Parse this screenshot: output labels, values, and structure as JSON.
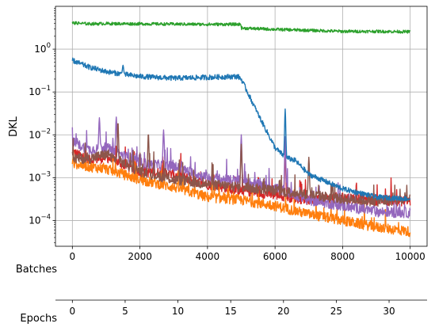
{
  "chart_data": {
    "type": "line",
    "ylabel": "DKL",
    "yscale": "log",
    "ylim": [
      2.5e-05,
      10
    ],
    "grid": true,
    "x_axes": [
      {
        "label": "Batches",
        "range": [
          -500,
          10500
        ],
        "ticks": [
          0,
          2000,
          4000,
          6000,
          8000,
          10000
        ]
      },
      {
        "label": "Epochs",
        "range": [
          -1.6,
          33.6
        ],
        "ticks": [
          0,
          5,
          10,
          15,
          20,
          25,
          30
        ]
      }
    ],
    "y_tick_exponents": [
      -4,
      -3,
      -2,
      -1,
      0
    ],
    "series": [
      {
        "color": "#2ca02c",
        "noise": 0.035,
        "x": [
          0,
          500,
          1000,
          2000,
          3000,
          4000,
          4990,
          5010,
          6000,
          7000,
          8000,
          9000,
          10000
        ],
        "y": [
          4.1,
          3.9,
          3.95,
          3.9,
          3.85,
          3.8,
          3.8,
          3.1,
          2.9,
          2.75,
          2.6,
          2.6,
          2.55
        ]
      },
      {
        "color": "#1f77b4",
        "noise": 0.06,
        "x": [
          0,
          200,
          500,
          1000,
          1500,
          2000,
          3000,
          4000,
          4900,
          5000,
          5500,
          6000,
          6300,
          6600,
          7000,
          8000,
          9000,
          10000
        ],
        "y": [
          0.55,
          0.47,
          0.38,
          0.3,
          0.26,
          0.23,
          0.21,
          0.22,
          0.23,
          0.2,
          0.03,
          0.005,
          0.003,
          0.0025,
          0.0012,
          0.00055,
          0.00035,
          0.00032
        ]
      },
      {
        "color": "#d62728",
        "noise": 0.12,
        "x": [
          0,
          500,
          1000,
          2000,
          3000,
          4000,
          5000,
          6000,
          7000,
          8000,
          9000,
          10000
        ],
        "y": [
          0.004,
          0.0025,
          0.003,
          0.0014,
          0.0012,
          0.0007,
          0.0005,
          0.0004,
          0.0003,
          0.00035,
          0.0003,
          0.00028
        ]
      },
      {
        "color": "#ff7f0e",
        "noise": 0.12,
        "x": [
          0,
          500,
          1000,
          2000,
          3000,
          4000,
          5000,
          6000,
          7000,
          8000,
          9000,
          10000
        ],
        "y": [
          0.0022,
          0.0018,
          0.0016,
          0.0009,
          0.0006,
          0.00035,
          0.0003,
          0.00022,
          0.00014,
          0.0001,
          7e-05,
          5.5e-05
        ]
      },
      {
        "color": "#9467bd",
        "noise": 0.12,
        "x": [
          0,
          500,
          1000,
          2000,
          3000,
          4000,
          5000,
          6000,
          7000,
          8000,
          9000,
          10000
        ],
        "y": [
          0.0068,
          0.0045,
          0.005,
          0.0022,
          0.0018,
          0.001,
          0.0008,
          0.0006,
          0.0003,
          0.00022,
          0.00016,
          0.00015
        ]
      },
      {
        "color": "#8c564b",
        "noise": 0.12,
        "x": [
          0,
          500,
          1000,
          2000,
          3000,
          4000,
          5000,
          6000,
          7000,
          8000,
          9000,
          10000
        ],
        "y": [
          0.0028,
          0.0028,
          0.0035,
          0.0014,
          0.0009,
          0.0007,
          0.0006,
          0.0005,
          0.0004,
          0.00032,
          0.00028,
          0.0003
        ]
      }
    ],
    "spikes": [
      {
        "series": 1,
        "x": 1500,
        "y": 0.42
      },
      {
        "series": 1,
        "x": 6300,
        "y": 0.04
      },
      {
        "series": 1,
        "x": 5450,
        "y": 0.035
      },
      {
        "series": 4,
        "x": 800,
        "y": 0.025
      },
      {
        "series": 4,
        "x": 1300,
        "y": 0.026
      },
      {
        "series": 4,
        "x": 2700,
        "y": 0.013
      },
      {
        "series": 4,
        "x": 5000,
        "y": 0.01
      },
      {
        "series": 4,
        "x": 6300,
        "y": 0.009
      },
      {
        "series": 5,
        "x": 1350,
        "y": 0.02
      },
      {
        "series": 5,
        "x": 2250,
        "y": 0.011
      },
      {
        "series": 5,
        "x": 5000,
        "y": 0.006
      },
      {
        "series": 5,
        "x": 7000,
        "y": 0.003
      },
      {
        "series": 2,
        "x": 6300,
        "y": 0.004
      }
    ]
  }
}
